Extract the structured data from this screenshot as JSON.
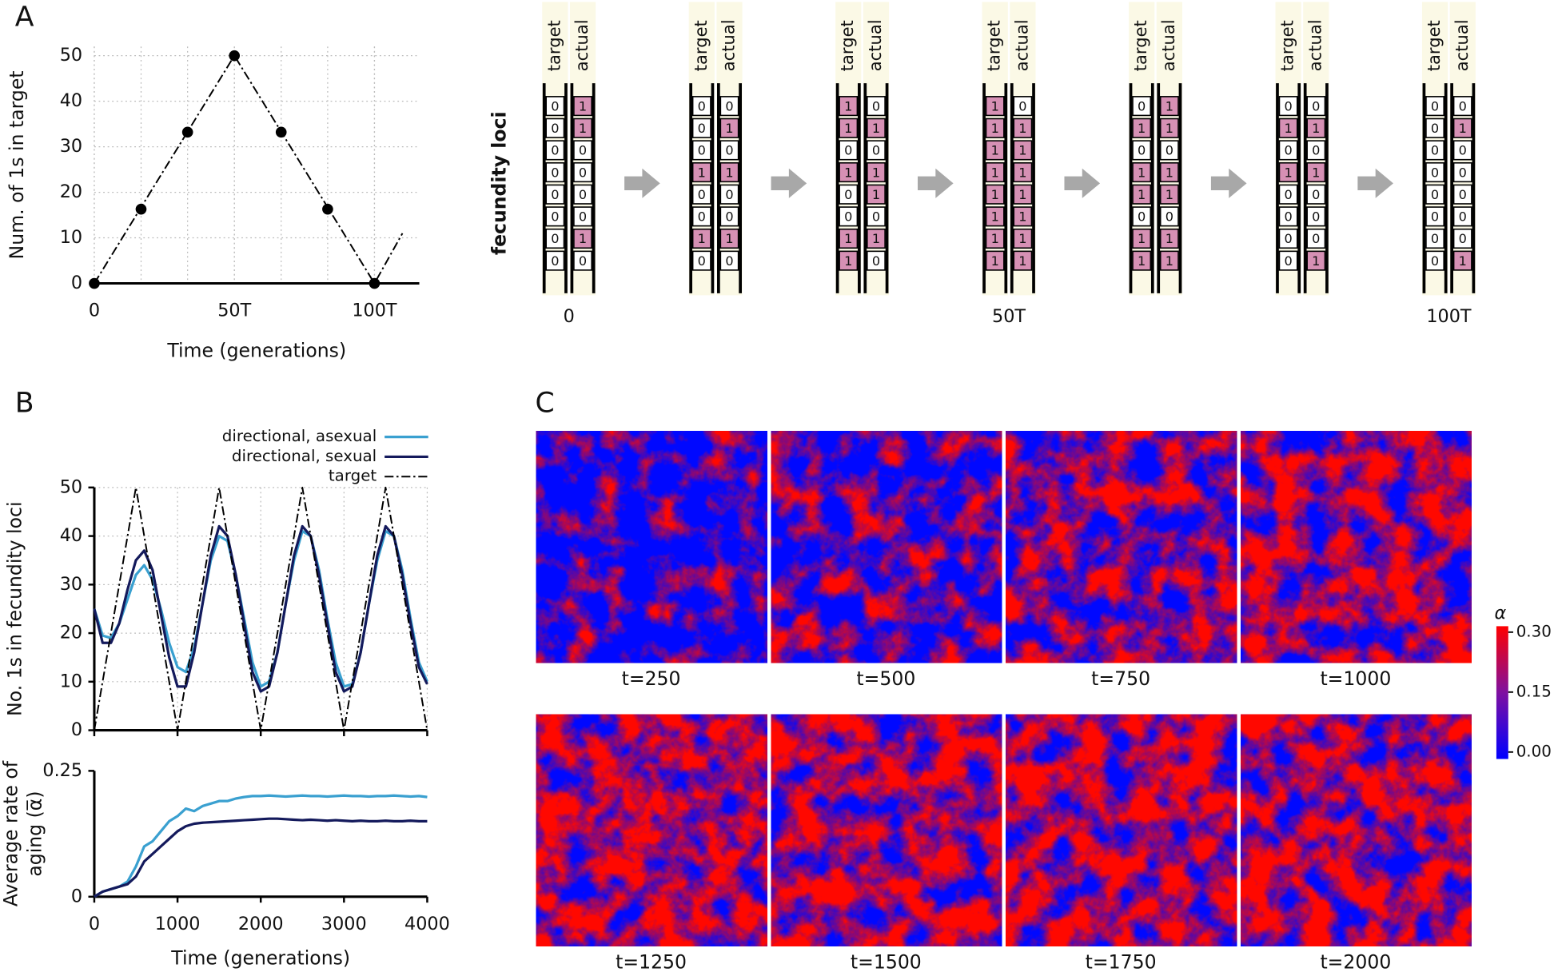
{
  "panel_labels": [
    "A",
    "B",
    "C"
  ],
  "chart_data": [
    {
      "type": "line",
      "xlabel": "Time (generations)",
      "ylabel": "Num. of 1s in target",
      "xlim": [
        0,
        116
      ],
      "ylim": [
        0,
        52
      ],
      "xticks": [
        0,
        {
          "value": 50,
          "label": "50T"
        },
        {
          "value": 100,
          "label": "100T"
        }
      ],
      "yticks": [
        0,
        10,
        20,
        30,
        40,
        50
      ],
      "grid": true,
      "series": [
        {
          "x": [
            0,
            50,
            100,
            110
          ],
          "values": [
            0,
            50,
            0,
            11
          ],
          "color": "#000000",
          "dash": "dashdot"
        }
      ],
      "points": {
        "x": [
          0,
          16.7,
          33.3,
          50,
          66.7,
          83.3,
          100
        ],
        "values": [
          0,
          16.3,
          33.2,
          50,
          33.2,
          16.3,
          0
        ],
        "color": "#000000"
      }
    },
    {
      "type": "line",
      "ylabel": "No. 1s in fecundity loci",
      "xlim": [
        0,
        4000
      ],
      "ylim": [
        0,
        50
      ],
      "xticks": [
        0,
        1000,
        2000,
        3000,
        4000
      ],
      "yticks": [
        0,
        10,
        20,
        30,
        40,
        50
      ],
      "grid": true,
      "legend": "top-right",
      "x": [
        0,
        100,
        200,
        300,
        400,
        500,
        600,
        700,
        800,
        900,
        1000,
        1100,
        1200,
        1300,
        1400,
        1500,
        1600,
        1700,
        1800,
        1900,
        2000,
        2100,
        2200,
        2300,
        2400,
        2500,
        2600,
        2700,
        2800,
        2900,
        3000,
        3100,
        3200,
        3300,
        3400,
        3500,
        3600,
        3700,
        3800,
        3900,
        4000
      ],
      "series": [
        {
          "name": "directional, asexual",
          "color": "#3aa0d0",
          "values": [
            25,
            19.5,
            19,
            22,
            27,
            32,
            34,
            31,
            25,
            18,
            13,
            12,
            17,
            26,
            35,
            40,
            39,
            32,
            23,
            14,
            9,
            10,
            16,
            26,
            35,
            41,
            40,
            33,
            23,
            14,
            9,
            9.5,
            16,
            26,
            35,
            41,
            40,
            33,
            23,
            14,
            10
          ]
        },
        {
          "name": "directional, sexual",
          "color": "#141a5c",
          "values": [
            25,
            18,
            18,
            22,
            29,
            35,
            37,
            33,
            24,
            15,
            9,
            9,
            16,
            26,
            36,
            42,
            40,
            32,
            22,
            12,
            8,
            9,
            16,
            26,
            36,
            42,
            40,
            32,
            22,
            12,
            8,
            9,
            16,
            26,
            36,
            42,
            40,
            32,
            22,
            13,
            9.5
          ]
        },
        {
          "name": "target",
          "color": "#000000",
          "dash": "dashdot",
          "x": [
            0,
            500,
            1000,
            1500,
            2000,
            2500,
            3000,
            3500,
            4000
          ],
          "values": [
            0,
            50,
            0,
            50,
            0,
            50,
            0,
            50,
            0
          ]
        }
      ]
    },
    {
      "type": "line",
      "xlabel": "Time (generations)",
      "ylabel": [
        "Average rate of",
        "aging (α̅)"
      ],
      "xlim": [
        0,
        4000
      ],
      "ylim": [
        0,
        0.25
      ],
      "xticks": [
        0,
        1000,
        2000,
        3000,
        4000
      ],
      "yticks": [
        0,
        0.25
      ],
      "grid": false,
      "x": [
        0,
        100,
        200,
        300,
        400,
        500,
        600,
        700,
        800,
        900,
        1000,
        1100,
        1200,
        1300,
        1400,
        1500,
        1600,
        1700,
        1800,
        1900,
        2000,
        2100,
        2200,
        2300,
        2400,
        2500,
        2600,
        2700,
        2800,
        2900,
        3000,
        3100,
        3200,
        3300,
        3400,
        3500,
        3600,
        3700,
        3800,
        3900,
        4000
      ],
      "series": [
        {
          "color": "#3aa0d0",
          "values": [
            0,
            0.01,
            0.015,
            0.02,
            0.03,
            0.06,
            0.1,
            0.11,
            0.13,
            0.15,
            0.16,
            0.175,
            0.17,
            0.18,
            0.185,
            0.19,
            0.19,
            0.195,
            0.198,
            0.2,
            0.2,
            0.201,
            0.2,
            0.199,
            0.2,
            0.201,
            0.2,
            0.2,
            0.199,
            0.2,
            0.201,
            0.2,
            0.2,
            0.199,
            0.2,
            0.2,
            0.201,
            0.2,
            0.199,
            0.2,
            0.198
          ]
        },
        {
          "color": "#141a5c",
          "values": [
            0,
            0.01,
            0.015,
            0.02,
            0.025,
            0.04,
            0.07,
            0.085,
            0.1,
            0.115,
            0.13,
            0.14,
            0.145,
            0.147,
            0.148,
            0.149,
            0.15,
            0.151,
            0.152,
            0.153,
            0.154,
            0.155,
            0.155,
            0.154,
            0.153,
            0.152,
            0.153,
            0.152,
            0.151,
            0.152,
            0.151,
            0.15,
            0.151,
            0.15,
            0.15,
            0.151,
            0.15,
            0.15,
            0.151,
            0.15,
            0.15
          ]
        }
      ]
    }
  ],
  "diagram": {
    "row_label": "fecundity loci",
    "column_labels": [
      "target",
      "actual"
    ],
    "stages": [
      {
        "label": "0",
        "target": [
          0,
          0,
          0,
          0,
          0,
          0,
          0,
          0
        ],
        "actual": [
          1,
          1,
          0,
          0,
          0,
          0,
          1,
          0
        ]
      },
      {
        "target": [
          0,
          0,
          0,
          1,
          0,
          0,
          1,
          0
        ],
        "actual": [
          0,
          1,
          0,
          1,
          0,
          0,
          1,
          0
        ]
      },
      {
        "target": [
          1,
          1,
          0,
          1,
          0,
          0,
          1,
          1
        ],
        "actual": [
          0,
          1,
          0,
          1,
          1,
          0,
          1,
          0
        ]
      },
      {
        "label": "50T",
        "target": [
          1,
          1,
          1,
          1,
          1,
          1,
          1,
          1
        ],
        "actual": [
          0,
          1,
          1,
          1,
          1,
          1,
          1,
          1
        ]
      },
      {
        "target": [
          0,
          1,
          0,
          1,
          1,
          0,
          1,
          1
        ],
        "actual": [
          1,
          1,
          0,
          1,
          1,
          0,
          1,
          1
        ]
      },
      {
        "target": [
          0,
          1,
          0,
          1,
          0,
          0,
          0,
          0
        ],
        "actual": [
          0,
          1,
          0,
          1,
          0,
          0,
          0,
          1
        ]
      },
      {
        "label": "100T",
        "target": [
          0,
          0,
          0,
          0,
          0,
          0,
          0,
          0
        ],
        "actual": [
          0,
          1,
          0,
          0,
          0,
          0,
          0,
          1
        ]
      }
    ]
  },
  "heatmaps": {
    "panels": [
      {
        "label": "t=250"
      },
      {
        "label": "t=500"
      },
      {
        "label": "t=750"
      },
      {
        "label": "t=1000"
      },
      {
        "label": "t=1250"
      },
      {
        "label": "t=1500"
      },
      {
        "label": "t=1750"
      },
      {
        "label": "t=2000"
      }
    ],
    "colorbar": {
      "label": "α",
      "clim": [
        0,
        0.3
      ],
      "ticks": [
        {
          "value": 0,
          "label": "0.00"
        },
        0.15,
        {
          "value": 0.3,
          "label": "0.30"
        }
      ]
    }
  }
}
